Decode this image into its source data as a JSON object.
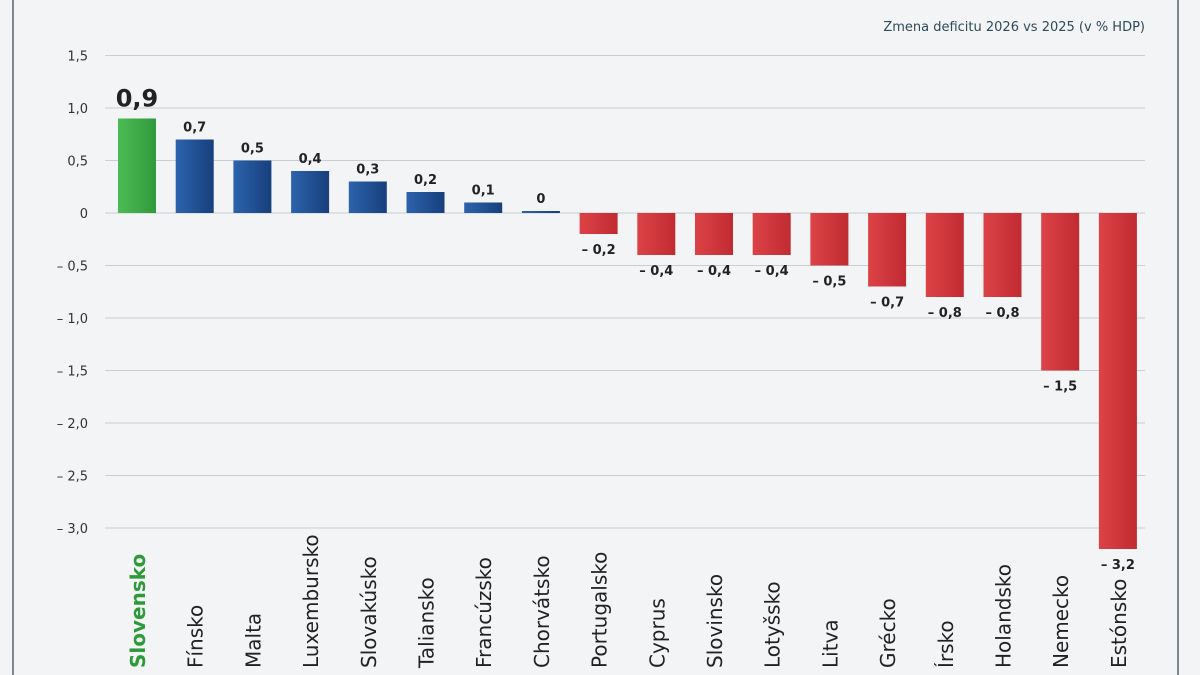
{
  "chart_data": {
    "type": "bar",
    "title": "Zmena deficitu 2026 vs 2025 (v % HDP)",
    "categories": [
      "Slovensko",
      "Fínsko",
      "Malta",
      "Luxembursko",
      "Slovakúsko",
      "Taliansko",
      "Francúzsko",
      "Chorvátsko",
      "Portugalsko",
      "Cyprus",
      "Slovinsko",
      "Lotyšsko",
      "Litva",
      "Grécko",
      "Írsko",
      "Holandsko",
      "Nemecko",
      "Estónsko"
    ],
    "values": [
      0.9,
      0.7,
      0.5,
      0.4,
      0.3,
      0.2,
      0.1,
      0,
      -0.2,
      -0.4,
      -0.4,
      -0.4,
      -0.5,
      -0.7,
      -0.8,
      -0.8,
      -1.5,
      -3.2
    ],
    "value_labels": [
      "0,9",
      "0,7",
      "0,5",
      "0,4",
      "0,3",
      "0,2",
      "0,1",
      "0",
      "– 0,2",
      "– 0,4",
      "– 0,4",
      "– 0,4",
      "– 0,5",
      "– 0,7",
      "– 0,8",
      "– 0,8",
      "– 1,5",
      "– 3,2"
    ],
    "yticks": [
      1.5,
      1.0,
      0.5,
      0,
      -0.5,
      -1.0,
      -1.5,
      -2.0,
      -2.5,
      -3.0
    ],
    "ytick_labels": [
      "1,5",
      "1,0",
      "0,5",
      "0",
      "– 0,5",
      "– 1,0",
      "– 1,5",
      "– 2,0",
      "– 2,5",
      "– 3,0"
    ],
    "ylim": [
      -3.0,
      1.5
    ],
    "grid": true,
    "colors": {
      "highlight": "#3aa845",
      "positive": "#1f4f93",
      "negative": "#cf3439",
      "grid": "#c9ced3",
      "text": "#222222"
    }
  }
}
